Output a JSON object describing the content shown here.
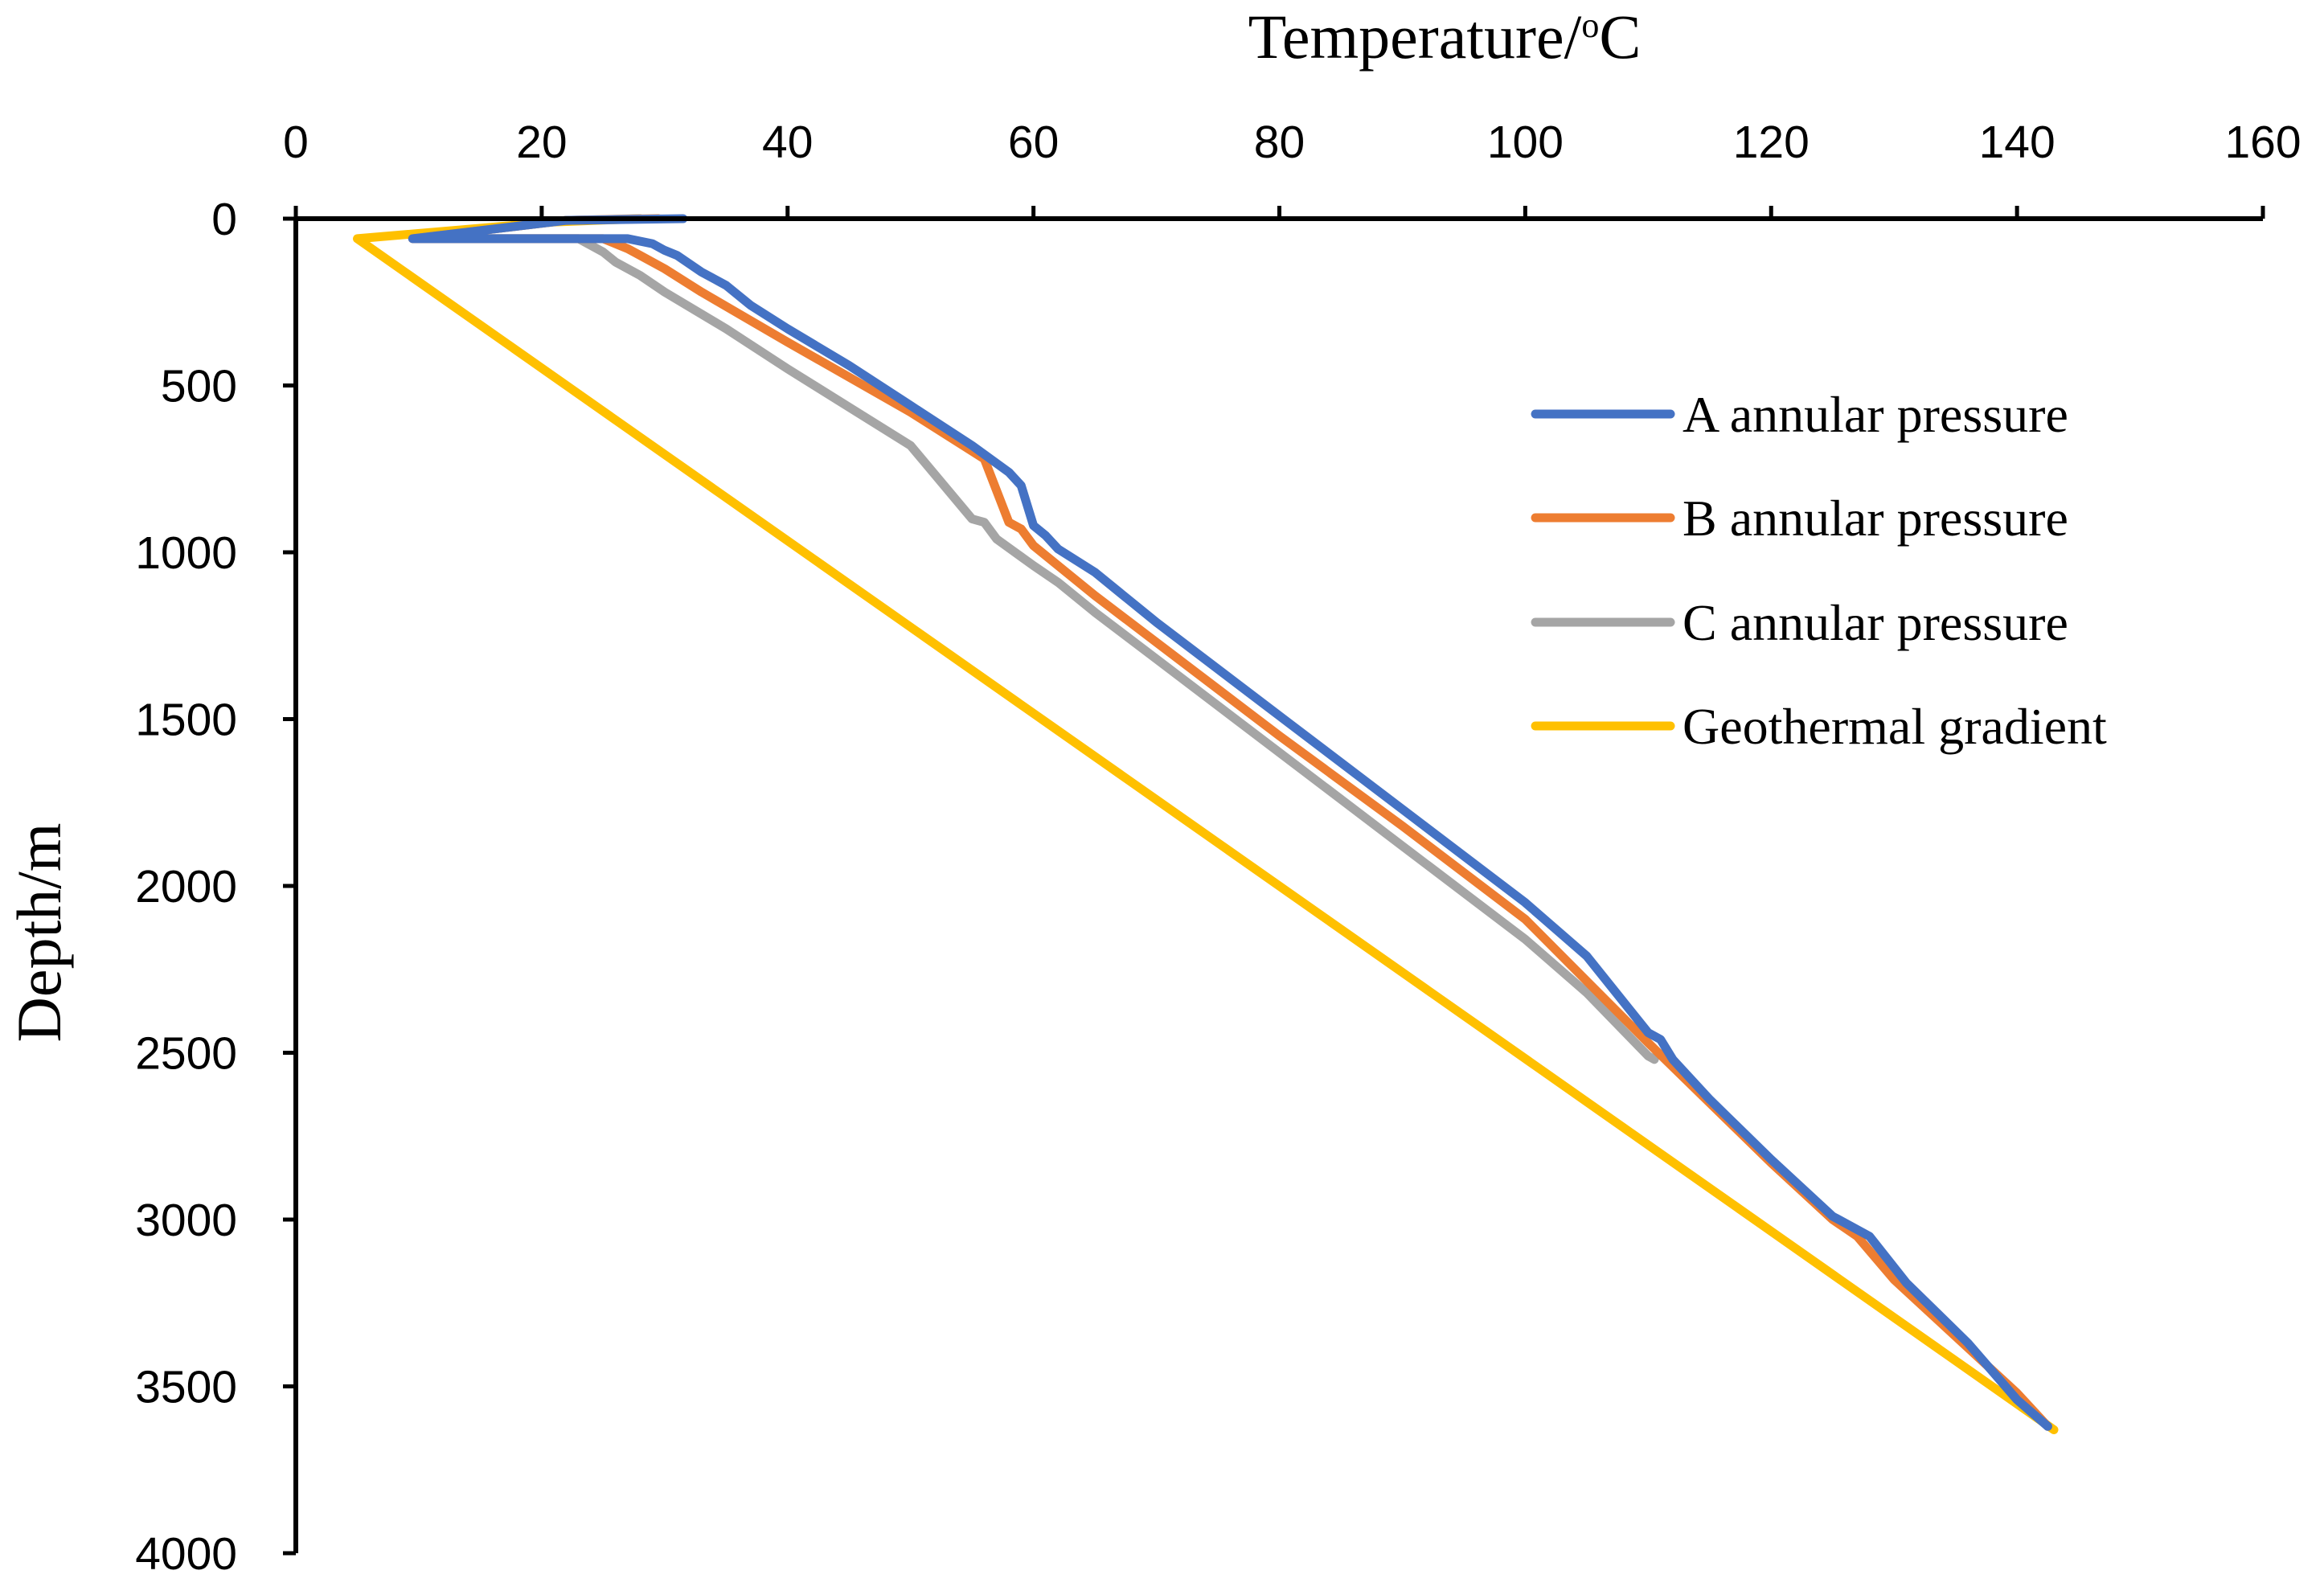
{
  "chart_data": {
    "type": "line",
    "title": "",
    "xlabel": "Temperature/",
    "xlabel_sup": "o",
    "xlabel_unit": "C",
    "ylabel": "Depth/m",
    "xlim": [
      0,
      160
    ],
    "ylim": [
      0,
      4000
    ],
    "x_axis_position": "top",
    "y_axis_inverted": true,
    "xticks": [
      0,
      20,
      40,
      60,
      80,
      100,
      120,
      140,
      160
    ],
    "yticks": [
      0,
      500,
      1000,
      1500,
      2000,
      2500,
      3000,
      3500,
      4000
    ],
    "grid": false,
    "legend_position": "right",
    "series": [
      {
        "name": "A annular pressure",
        "color": "#4472C4",
        "points": [
          [
            31.5,
            0
          ],
          [
            22,
            5
          ],
          [
            9.5,
            60
          ],
          [
            27,
            60
          ],
          [
            29,
            75
          ],
          [
            30,
            95
          ],
          [
            31,
            110
          ],
          [
            33,
            160
          ],
          [
            35,
            200
          ],
          [
            37,
            260
          ],
          [
            40,
            330
          ],
          [
            45,
            440
          ],
          [
            50,
            560
          ],
          [
            55,
            680
          ],
          [
            58,
            760
          ],
          [
            59,
            800
          ],
          [
            60,
            920
          ],
          [
            61,
            950
          ],
          [
            62,
            990
          ],
          [
            65,
            1060
          ],
          [
            67,
            1120
          ],
          [
            70,
            1210
          ],
          [
            80,
            1490
          ],
          [
            90,
            1770
          ],
          [
            100,
            2050
          ],
          [
            105,
            2210
          ],
          [
            110,
            2440
          ],
          [
            111,
            2460
          ],
          [
            112,
            2520
          ],
          [
            115,
            2640
          ],
          [
            120,
            2820
          ],
          [
            125,
            2990
          ],
          [
            128,
            3050
          ],
          [
            131,
            3190
          ],
          [
            136,
            3370
          ],
          [
            140,
            3540
          ],
          [
            142.5,
            3620
          ]
        ]
      },
      {
        "name": "B annular pressure",
        "color": "#ED7D31",
        "points": [
          [
            29.5,
            0
          ],
          [
            22,
            5
          ],
          [
            9.5,
            60
          ],
          [
            25,
            60
          ],
          [
            27,
            90
          ],
          [
            28,
            110
          ],
          [
            30,
            150
          ],
          [
            33,
            220
          ],
          [
            40,
            370
          ],
          [
            50,
            580
          ],
          [
            56,
            720
          ],
          [
            58,
            910
          ],
          [
            59,
            930
          ],
          [
            60,
            980
          ],
          [
            63,
            1070
          ],
          [
            65,
            1130
          ],
          [
            70,
            1270
          ],
          [
            80,
            1550
          ],
          [
            90,
            1820
          ],
          [
            100,
            2100
          ],
          [
            110,
            2470
          ],
          [
            115,
            2650
          ],
          [
            120,
            2830
          ],
          [
            125,
            3000
          ],
          [
            127,
            3050
          ],
          [
            130,
            3180
          ],
          [
            135,
            3350
          ],
          [
            140,
            3520
          ],
          [
            142.5,
            3620
          ]
        ]
      },
      {
        "name": "C annular pressure",
        "color": "#A5A5A5",
        "points": [
          [
            28,
            0
          ],
          [
            22,
            5
          ],
          [
            9.5,
            60
          ],
          [
            23,
            60
          ],
          [
            24,
            80
          ],
          [
            25,
            100
          ],
          [
            26,
            130
          ],
          [
            28,
            170
          ],
          [
            30,
            220
          ],
          [
            35,
            330
          ],
          [
            40,
            450
          ],
          [
            50,
            680
          ],
          [
            55,
            900
          ],
          [
            56,
            910
          ],
          [
            57,
            960
          ],
          [
            60,
            1040
          ],
          [
            62,
            1090
          ],
          [
            65,
            1180
          ],
          [
            70,
            1320
          ],
          [
            80,
            1600
          ],
          [
            90,
            1880
          ],
          [
            100,
            2160
          ],
          [
            105,
            2320
          ],
          [
            110,
            2510
          ],
          [
            110.5,
            2520
          ]
        ]
      },
      {
        "name": "Geothermal gradient",
        "color": "#FFC000",
        "points": [
          [
            28,
            0
          ],
          [
            21,
            10
          ],
          [
            5,
            60
          ],
          [
            143,
            3630
          ]
        ]
      }
    ]
  }
}
